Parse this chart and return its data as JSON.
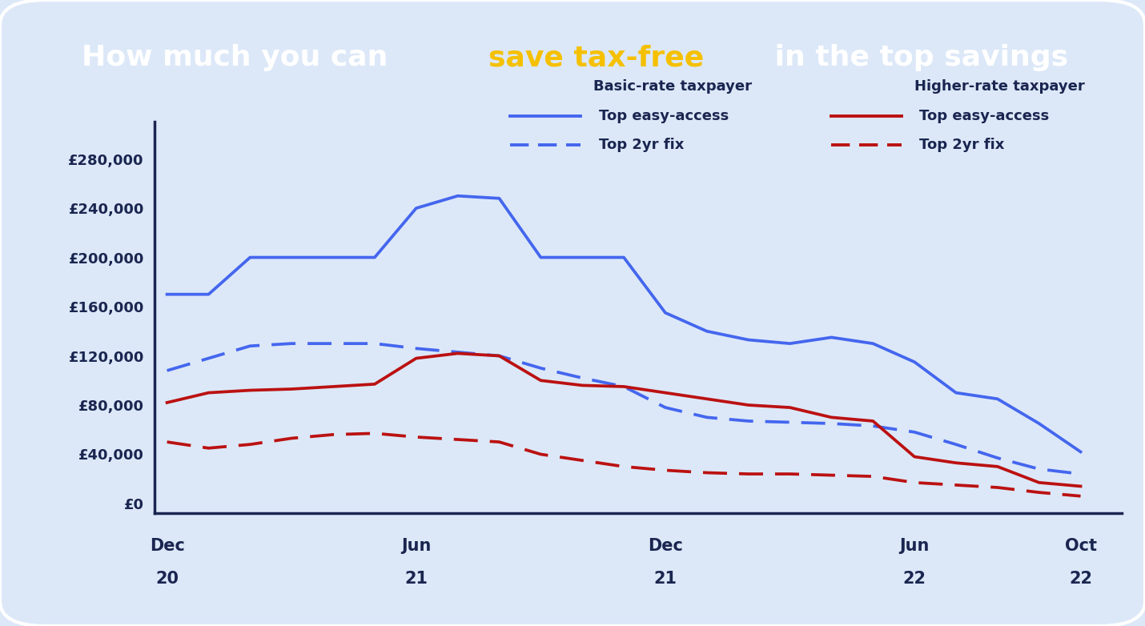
{
  "title_bg": "#1e2d5a",
  "background_color": "#dce8f8",
  "blue_color": "#4466ee",
  "red_color": "#bb1111",
  "text_color": "#1a2650",
  "legend_col1_header": "Basic-rate taxpayer",
  "legend_col2_header": "Higher-rate taxpayer",
  "legend_col1_solid": "Top easy-access",
  "legend_col1_dashed": "Top 2yr fix",
  "legend_col2_solid": "Top easy-access",
  "legend_col2_dashed": "Top 2yr fix",
  "x_tick_positions": [
    0,
    6,
    12,
    18,
    22
  ],
  "x_tick_labels": [
    [
      "Dec",
      "20"
    ],
    [
      "Jun",
      "21"
    ],
    [
      "Dec",
      "21"
    ],
    [
      "Jun",
      "22"
    ],
    [
      "Oct",
      "22"
    ]
  ],
  "yticks": [
    0,
    40000,
    80000,
    120000,
    160000,
    200000,
    240000,
    280000
  ],
  "ylim": [
    -8000,
    310000
  ],
  "xlim": [
    -0.3,
    23.0
  ],
  "blue_solid": [
    170000,
    170000,
    200000,
    200000,
    200000,
    200000,
    240000,
    250000,
    248000,
    200000,
    200000,
    200000,
    155000,
    140000,
    133000,
    130000,
    135000,
    130000,
    115000,
    90000,
    85000,
    65000,
    42000
  ],
  "blue_dashed": [
    108000,
    118000,
    128000,
    130000,
    130000,
    130000,
    126000,
    123000,
    120000,
    110000,
    102000,
    95000,
    78000,
    70000,
    67000,
    66000,
    65000,
    63000,
    58000,
    48000,
    37000,
    28000,
    24000
  ],
  "red_solid": [
    82000,
    90000,
    92000,
    93000,
    95000,
    97000,
    118000,
    122000,
    120000,
    100000,
    96000,
    95000,
    90000,
    85000,
    80000,
    78000,
    70000,
    67000,
    38000,
    33000,
    30000,
    17000,
    14000
  ],
  "red_dashed": [
    50000,
    45000,
    48000,
    53000,
    56000,
    57000,
    54000,
    52000,
    50000,
    40000,
    35000,
    30000,
    27000,
    25000,
    24000,
    24000,
    23000,
    22000,
    17000,
    15000,
    13000,
    9000,
    6000
  ]
}
